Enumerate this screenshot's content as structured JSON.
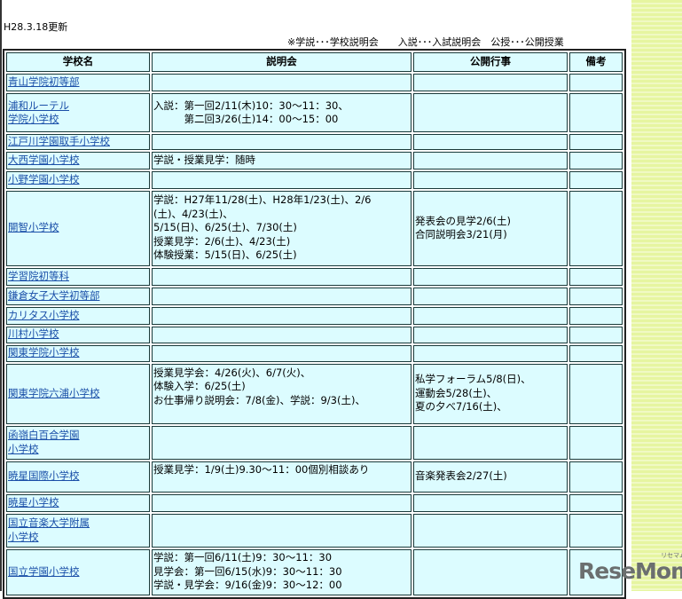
{
  "updated": "H28.3.18更新",
  "legend": "※学説･･･学校説明会　　入説･･･入試説明会　公授･･･公開授業",
  "headers": [
    "学校名",
    "説明会",
    "公開行事",
    "備考"
  ],
  "rows": [
    {
      "name": [
        "青山学院初等部"
      ],
      "info": [],
      "events": [],
      "h": 20
    },
    {
      "name": [
        "浦和ルーテル",
        "学院小学校"
      ],
      "info": [
        "入説：第一回2/11(木)10：30～11：30、",
        "　　　第二回3/26(土)14：00～15：00"
      ],
      "events": [],
      "h": 44
    },
    {
      "name": [
        "江戸川学園取手小学校"
      ],
      "info": [],
      "events": [],
      "h": 15
    },
    {
      "name": [
        "大西学園小学校"
      ],
      "info": [
        "学説・授業見学：随時"
      ],
      "events": [],
      "h": 20
    },
    {
      "name": [
        "小野学園小学校"
      ],
      "info": [],
      "events": [],
      "h": 20
    },
    {
      "name": [
        "開智小学校"
      ],
      "info": [
        "学説：H27年11/28(土)、H28年1/23(土)、2/6",
        "(土)、4/23(土)、",
        "5/15(日)、6/25(土)、7/30(土)",
        "授業見学：2/6(土)、4/23(土)",
        "体験授業：5/15(日)、6/25(土)"
      ],
      "events": [
        "発表会の見学2/6(土)",
        "合同説明会3/21(月)"
      ],
      "h": 85
    },
    {
      "name": [
        "学習院初等科"
      ],
      "info": [],
      "events": [],
      "h": 20
    },
    {
      "name": [
        "鎌倉女子大学初等部"
      ],
      "info": [],
      "events": [],
      "h": 20
    },
    {
      "name": [
        "カリタス小学校"
      ],
      "info": [],
      "events": [],
      "h": 20
    },
    {
      "name": [
        "川村小学校"
      ],
      "info": [],
      "events": [],
      "h": 19
    },
    {
      "name": [
        "関東学院小学校"
      ],
      "info": [],
      "events": [],
      "h": 19
    },
    {
      "name": [
        "関東学院六浦小学校"
      ],
      "info": [
        "授業見学会：4/26(火)、6/7(火)、",
        "体験入学：6/25(土)",
        "お仕事帰り説明会：7/8(金)、学説：9/3(土)、",
        ""
      ],
      "events": [
        "私学フォーラム5/8(日)、",
        "運動会5/28(土)、",
        "夏の夕べ7/16(土)、"
      ],
      "h": 68
    },
    {
      "name": [
        "函嶺白百合学園",
        "小学校"
      ],
      "info": [],
      "events": [],
      "h": 38
    },
    {
      "name": [
        "暁星国際小学校"
      ],
      "info": [
        "授業見学：1/9(土)9.30～11：00個別相談あり",
        ""
      ],
      "events": [
        "音楽発表会2/27(土)"
      ],
      "h": 35
    },
    {
      "name": [
        "暁星小学校"
      ],
      "info": [],
      "events": [],
      "h": 20
    },
    {
      "name": [
        "国立音楽大学附属",
        "小学校"
      ],
      "info": [],
      "events": [],
      "h": 38
    },
    {
      "name": [
        "国立学園小学校"
      ],
      "info": [
        "学説：第一回6/11(土)9：30～11：30",
        "見学会：第一回6/15(水)9：30～11：30",
        "学説・見学会：9/16(金)9：30～12：00"
      ],
      "events": [],
      "h": 52
    }
  ],
  "logo": {
    "text": "ReseMom",
    "sub": "リセマム"
  },
  "colors": {
    "cell": "#dcfcff",
    "link": "#1a4fa8",
    "stripe": "#e6f5a0"
  }
}
